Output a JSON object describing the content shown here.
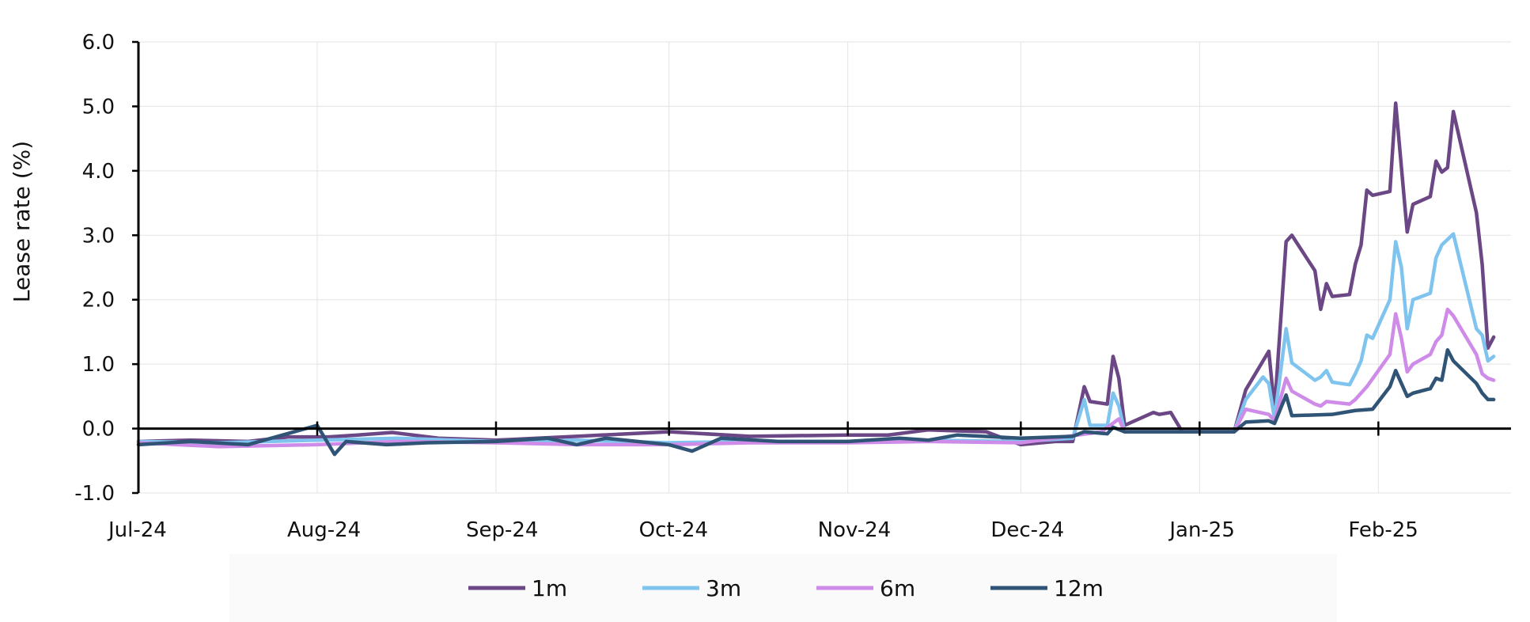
{
  "chart_data": {
    "type": "line",
    "title": "",
    "xlabel": "",
    "ylabel": "Lease rate (%)",
    "ylim": [
      -1.0,
      6.0
    ],
    "y_ticks": [
      "-1.0",
      "0.0",
      "1.0",
      "2.0",
      "3.0",
      "4.0",
      "5.0",
      "6.0"
    ],
    "x_range": [
      "2024-07-01",
      "2025-02-24"
    ],
    "x_tick_dates": [
      "2024-07-01",
      "2024-08-01",
      "2024-09-01",
      "2024-10-01",
      "2024-11-01",
      "2024-12-01",
      "2025-01-01",
      "2025-02-01"
    ],
    "x_tick_labels": [
      "Jul-24",
      "Aug-24",
      "Sep-24",
      "Oct-24",
      "Nov-24",
      "Dec-24",
      "Jan-25",
      "Feb-25"
    ],
    "grid": true,
    "legend_position": "bottom",
    "series": [
      {
        "name": "1m",
        "color": "#6b4785",
        "points": [
          [
            "2024-07-01",
            -0.2
          ],
          [
            "2024-07-10",
            -0.18
          ],
          [
            "2024-07-20",
            -0.2
          ],
          [
            "2024-07-27",
            -0.13
          ],
          [
            "2024-08-03",
            -0.13
          ],
          [
            "2024-08-08",
            -0.1
          ],
          [
            "2024-08-14",
            -0.06
          ],
          [
            "2024-08-22",
            -0.15
          ],
          [
            "2024-09-01",
            -0.18
          ],
          [
            "2024-09-15",
            -0.12
          ],
          [
            "2024-10-01",
            -0.05
          ],
          [
            "2024-10-15",
            -0.12
          ],
          [
            "2024-11-01",
            -0.1
          ],
          [
            "2024-11-08",
            -0.1
          ],
          [
            "2024-11-15",
            -0.02
          ],
          [
            "2024-11-25",
            -0.05
          ],
          [
            "2024-12-01",
            -0.25
          ],
          [
            "2024-12-07",
            -0.2
          ],
          [
            "2024-12-10",
            -0.2
          ],
          [
            "2024-12-12",
            0.65
          ],
          [
            "2024-12-13",
            0.42
          ],
          [
            "2024-12-16",
            0.38
          ],
          [
            "2024-12-17",
            1.12
          ],
          [
            "2024-12-18",
            0.78
          ],
          [
            "2024-12-19",
            0.05
          ],
          [
            "2024-12-24",
            0.25
          ],
          [
            "2024-12-25",
            0.22
          ],
          [
            "2024-12-27",
            0.25
          ],
          [
            "2024-12-29",
            -0.05
          ],
          [
            "2025-01-07",
            -0.05
          ],
          [
            "2025-01-09",
            0.6
          ],
          [
            "2025-01-13",
            1.2
          ],
          [
            "2025-01-14",
            0.3
          ],
          [
            "2025-01-16",
            2.9
          ],
          [
            "2025-01-17",
            3.0
          ],
          [
            "2025-01-21",
            2.45
          ],
          [
            "2025-01-22",
            1.85
          ],
          [
            "2025-01-23",
            2.25
          ],
          [
            "2025-01-24",
            2.05
          ],
          [
            "2025-01-27",
            2.08
          ],
          [
            "2025-01-28",
            2.55
          ],
          [
            "2025-01-29",
            2.85
          ],
          [
            "2025-01-30",
            3.7
          ],
          [
            "2025-01-31",
            3.62
          ],
          [
            "2025-02-03",
            3.68
          ],
          [
            "2025-02-04",
            5.05
          ],
          [
            "2025-02-06",
            3.05
          ],
          [
            "2025-02-07",
            3.48
          ],
          [
            "2025-02-10",
            3.6
          ],
          [
            "2025-02-11",
            4.15
          ],
          [
            "2025-02-12",
            3.98
          ],
          [
            "2025-02-13",
            4.05
          ],
          [
            "2025-02-14",
            4.92
          ],
          [
            "2025-02-18",
            3.35
          ],
          [
            "2025-02-19",
            2.55
          ],
          [
            "2025-02-20",
            1.25
          ],
          [
            "2025-02-21",
            1.42
          ]
        ]
      },
      {
        "name": "3m",
        "color": "#7fc4ee",
        "points": [
          [
            "2024-07-01",
            -0.2
          ],
          [
            "2024-07-15",
            -0.22
          ],
          [
            "2024-08-01",
            -0.18
          ],
          [
            "2024-08-15",
            -0.15
          ],
          [
            "2024-09-01",
            -0.2
          ],
          [
            "2024-09-15",
            -0.18
          ],
          [
            "2024-10-01",
            -0.22
          ],
          [
            "2024-10-15",
            -0.2
          ],
          [
            "2024-11-01",
            -0.2
          ],
          [
            "2024-11-15",
            -0.18
          ],
          [
            "2024-12-01",
            -0.2
          ],
          [
            "2024-12-10",
            -0.15
          ],
          [
            "2024-12-12",
            0.45
          ],
          [
            "2024-12-13",
            0.05
          ],
          [
            "2024-12-16",
            0.05
          ],
          [
            "2024-12-17",
            0.55
          ],
          [
            "2024-12-18",
            0.35
          ],
          [
            "2024-12-19",
            -0.05
          ],
          [
            "2024-12-29",
            -0.05
          ],
          [
            "2025-01-07",
            -0.05
          ],
          [
            "2025-01-09",
            0.45
          ],
          [
            "2025-01-12",
            0.8
          ],
          [
            "2025-01-13",
            0.7
          ],
          [
            "2025-01-14",
            0.15
          ],
          [
            "2025-01-16",
            1.55
          ],
          [
            "2025-01-17",
            1.02
          ],
          [
            "2025-01-21",
            0.75
          ],
          [
            "2025-01-22",
            0.8
          ],
          [
            "2025-01-23",
            0.9
          ],
          [
            "2025-01-24",
            0.72
          ],
          [
            "2025-01-27",
            0.68
          ],
          [
            "2025-01-28",
            0.85
          ],
          [
            "2025-01-29",
            1.05
          ],
          [
            "2025-01-30",
            1.45
          ],
          [
            "2025-01-31",
            1.4
          ],
          [
            "2025-02-03",
            2.0
          ],
          [
            "2025-02-04",
            2.9
          ],
          [
            "2025-02-05",
            2.5
          ],
          [
            "2025-02-06",
            1.55
          ],
          [
            "2025-02-07",
            2.0
          ],
          [
            "2025-02-10",
            2.1
          ],
          [
            "2025-02-11",
            2.65
          ],
          [
            "2025-02-12",
            2.85
          ],
          [
            "2025-02-14",
            3.02
          ],
          [
            "2025-02-18",
            1.55
          ],
          [
            "2025-02-19",
            1.45
          ],
          [
            "2025-02-20",
            1.05
          ],
          [
            "2025-02-21",
            1.12
          ]
        ]
      },
      {
        "name": "6m",
        "color": "#cf8be8",
        "points": [
          [
            "2024-07-01",
            -0.22
          ],
          [
            "2024-07-15",
            -0.28
          ],
          [
            "2024-08-01",
            -0.25
          ],
          [
            "2024-08-15",
            -0.2
          ],
          [
            "2024-09-01",
            -0.22
          ],
          [
            "2024-09-15",
            -0.25
          ],
          [
            "2024-10-01",
            -0.25
          ],
          [
            "2024-10-15",
            -0.22
          ],
          [
            "2024-11-01",
            -0.22
          ],
          [
            "2024-11-15",
            -0.2
          ],
          [
            "2024-12-01",
            -0.22
          ],
          [
            "2024-12-15",
            -0.05
          ],
          [
            "2024-12-18",
            0.15
          ],
          [
            "2024-12-19",
            -0.05
          ],
          [
            "2025-01-07",
            -0.05
          ],
          [
            "2025-01-09",
            0.3
          ],
          [
            "2025-01-13",
            0.22
          ],
          [
            "2025-01-14",
            0.12
          ],
          [
            "2025-01-16",
            0.78
          ],
          [
            "2025-01-17",
            0.58
          ],
          [
            "2025-01-21",
            0.38
          ],
          [
            "2025-01-22",
            0.35
          ],
          [
            "2025-01-23",
            0.42
          ],
          [
            "2025-01-27",
            0.38
          ],
          [
            "2025-01-28",
            0.45
          ],
          [
            "2025-01-30",
            0.65
          ],
          [
            "2025-02-03",
            1.15
          ],
          [
            "2025-02-04",
            1.78
          ],
          [
            "2025-02-05",
            1.4
          ],
          [
            "2025-02-06",
            0.88
          ],
          [
            "2025-02-07",
            1.0
          ],
          [
            "2025-02-10",
            1.15
          ],
          [
            "2025-02-11",
            1.35
          ],
          [
            "2025-02-12",
            1.45
          ],
          [
            "2025-02-13",
            1.85
          ],
          [
            "2025-02-14",
            1.75
          ],
          [
            "2025-02-18",
            1.15
          ],
          [
            "2025-02-19",
            0.85
          ],
          [
            "2025-02-20",
            0.78
          ],
          [
            "2025-02-21",
            0.75
          ]
        ]
      },
      {
        "name": "12m",
        "color": "#2f5476",
        "points": [
          [
            "2024-07-01",
            -0.25
          ],
          [
            "2024-07-10",
            -0.2
          ],
          [
            "2024-07-20",
            -0.25
          ],
          [
            "2024-08-01",
            0.05
          ],
          [
            "2024-08-04",
            -0.4
          ],
          [
            "2024-08-06",
            -0.2
          ],
          [
            "2024-08-13",
            -0.25
          ],
          [
            "2024-08-20",
            -0.22
          ],
          [
            "2024-09-01",
            -0.2
          ],
          [
            "2024-09-10",
            -0.15
          ],
          [
            "2024-09-15",
            -0.25
          ],
          [
            "2024-09-20",
            -0.15
          ],
          [
            "2024-10-01",
            -0.25
          ],
          [
            "2024-10-05",
            -0.35
          ],
          [
            "2024-10-10",
            -0.15
          ],
          [
            "2024-10-20",
            -0.2
          ],
          [
            "2024-11-01",
            -0.2
          ],
          [
            "2024-11-10",
            -0.15
          ],
          [
            "2024-11-15",
            -0.18
          ],
          [
            "2024-11-20",
            -0.1
          ],
          [
            "2024-12-01",
            -0.15
          ],
          [
            "2024-12-10",
            -0.12
          ],
          [
            "2024-12-12",
            -0.05
          ],
          [
            "2024-12-16",
            -0.08
          ],
          [
            "2024-12-17",
            0.02
          ],
          [
            "2024-12-19",
            -0.05
          ],
          [
            "2024-12-29",
            -0.05
          ],
          [
            "2025-01-07",
            -0.05
          ],
          [
            "2025-01-09",
            0.1
          ],
          [
            "2025-01-13",
            0.12
          ],
          [
            "2025-01-14",
            0.08
          ],
          [
            "2025-01-16",
            0.52
          ],
          [
            "2025-01-17",
            0.2
          ],
          [
            "2025-01-24",
            0.22
          ],
          [
            "2025-01-28",
            0.28
          ],
          [
            "2025-01-31",
            0.3
          ],
          [
            "2025-02-03",
            0.65
          ],
          [
            "2025-02-04",
            0.9
          ],
          [
            "2025-02-06",
            0.5
          ],
          [
            "2025-02-07",
            0.55
          ],
          [
            "2025-02-10",
            0.62
          ],
          [
            "2025-02-11",
            0.78
          ],
          [
            "2025-02-12",
            0.75
          ],
          [
            "2025-02-13",
            1.22
          ],
          [
            "2025-02-14",
            1.05
          ],
          [
            "2025-02-18",
            0.7
          ],
          [
            "2025-02-19",
            0.55
          ],
          [
            "2025-02-20",
            0.45
          ],
          [
            "2025-02-21",
            0.45
          ]
        ]
      }
    ]
  }
}
